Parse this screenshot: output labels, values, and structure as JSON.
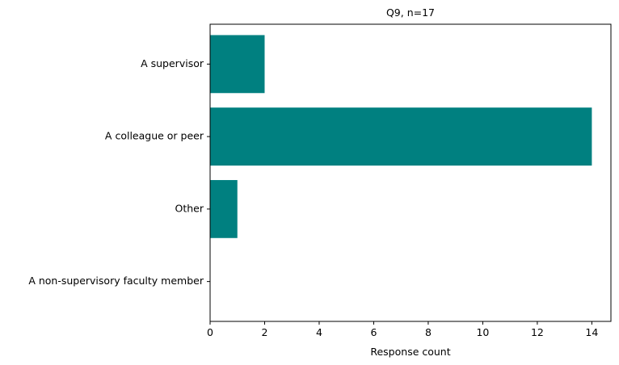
{
  "chart_data": {
    "type": "bar",
    "orientation": "horizontal",
    "title": "Q9, n=17",
    "xlabel": "Response count",
    "ylabel": "",
    "categories": [
      "A supervisor",
      "A colleague or peer",
      "Other",
      "A non-supervisory faculty member"
    ],
    "values": [
      2,
      14,
      1,
      0
    ],
    "xlim": [
      0,
      14.7
    ],
    "xticks": [
      "0",
      "2",
      "4",
      "6",
      "8",
      "10",
      "12",
      "14"
    ],
    "grid": false,
    "legend": "none",
    "bar_color": "#008080"
  }
}
